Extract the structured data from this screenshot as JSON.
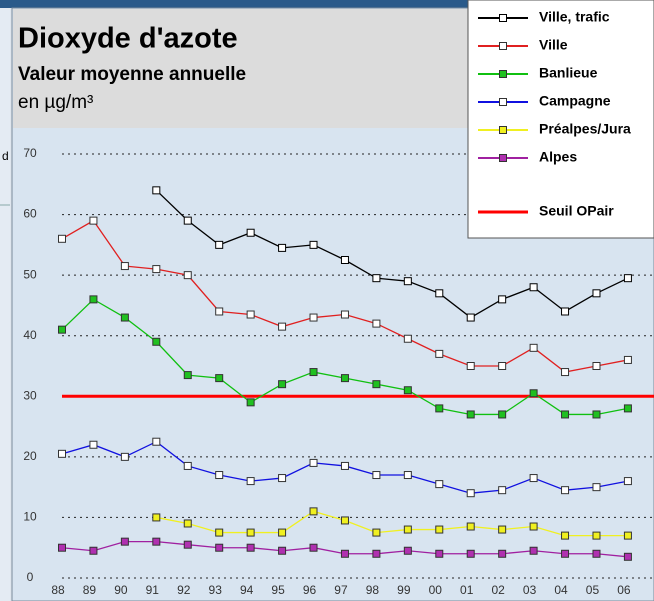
{
  "chart_data": {
    "type": "line",
    "title": "Dioxyde d'azote",
    "subtitle": "Valeur moyenne annuelle",
    "unit_label": "en µg/m³",
    "side_text": "d",
    "categories": [
      "88",
      "89",
      "90",
      "91",
      "92",
      "93",
      "94",
      "95",
      "96",
      "97",
      "98",
      "99",
      "00",
      "01",
      "02",
      "03",
      "04",
      "05",
      "06"
    ],
    "ylim": [
      0,
      70
    ],
    "yticks": [
      0,
      10,
      20,
      30,
      40,
      50,
      60,
      70
    ],
    "grid": true,
    "series": [
      {
        "name": "Ville, trafic",
        "color": "#000000",
        "marker_fill": "#ffffff",
        "values": [
          null,
          null,
          null,
          64,
          59,
          55,
          57,
          54.5,
          55,
          52.5,
          49.5,
          49,
          47,
          43,
          46,
          48,
          44,
          47,
          49.5
        ]
      },
      {
        "name": "Ville",
        "color": "#e02020",
        "marker_fill": "#ffffff",
        "values": [
          56,
          59,
          51.5,
          51,
          50,
          44,
          43.5,
          41.5,
          43,
          43.5,
          42,
          39.5,
          37,
          35,
          35,
          38,
          34,
          35,
          36
        ]
      },
      {
        "name": "Banlieue",
        "color": "#10c010",
        "marker_fill": "#20c020",
        "values": [
          41,
          46,
          43,
          39,
          33.5,
          33,
          29,
          32,
          34,
          33,
          32,
          31,
          28,
          27,
          27,
          30.5,
          27,
          27,
          28
        ]
      },
      {
        "name": "Campagne",
        "color": "#1010e0",
        "marker_fill": "#ffffff",
        "values": [
          20.5,
          22,
          20,
          22.5,
          18.5,
          17,
          16,
          16.5,
          19,
          18.5,
          17,
          17,
          15.5,
          14,
          14.5,
          16.5,
          14.5,
          15,
          16
        ]
      },
      {
        "name": "Préalpes/Jura",
        "color": "#f0f020",
        "marker_fill": "#f0f020",
        "values": [
          null,
          null,
          null,
          10,
          9,
          7.5,
          7.5,
          7.5,
          11,
          9.5,
          7.5,
          8,
          8,
          8.5,
          8,
          8.5,
          7,
          7,
          7
        ]
      },
      {
        "name": "Alpes",
        "color": "#a020a0",
        "marker_fill": "#b030b0",
        "values": [
          5,
          4.5,
          6,
          6,
          5.5,
          5,
          5,
          4.5,
          5,
          4,
          4,
          4.5,
          4,
          4,
          4,
          4.5,
          4,
          4,
          3.5
        ]
      }
    ],
    "threshold": {
      "name": "Seuil OPair",
      "value": 30,
      "color": "#ff0000"
    }
  }
}
